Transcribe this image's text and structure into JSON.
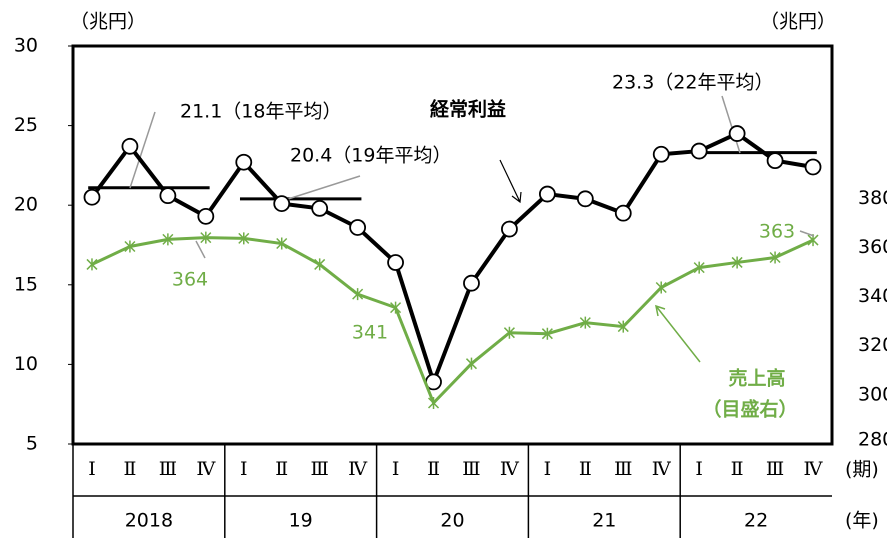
{
  "chart_data": {
    "type": "line",
    "unit_left": "（兆円）",
    "unit_right": "（兆円）",
    "categories": [
      "Ⅰ",
      "Ⅱ",
      "Ⅲ",
      "Ⅳ",
      "Ⅰ",
      "Ⅱ",
      "Ⅲ",
      "Ⅳ",
      "Ⅰ",
      "Ⅱ",
      "Ⅲ",
      "Ⅳ",
      "Ⅰ",
      "Ⅱ",
      "Ⅲ",
      "Ⅳ",
      "Ⅰ",
      "Ⅱ",
      "Ⅲ",
      "Ⅳ"
    ],
    "years": [
      "2018",
      "19",
      "20",
      "21",
      "22"
    ],
    "x_label_quarter": "(期)",
    "x_label_year": "(年)",
    "series": [
      {
        "name": "経常利益",
        "color": "#000000",
        "values": [
          20.5,
          23.7,
          20.6,
          19.3,
          22.7,
          20.1,
          19.8,
          18.6,
          16.4,
          8.9,
          15.1,
          18.5,
          20.7,
          20.4,
          19.5,
          23.2,
          23.4,
          24.5,
          22.8,
          22.4
        ]
      },
      {
        "name": "売上高",
        "note": "（目盛右）",
        "color": "#70ad47",
        "axis": "y2",
        "values": [
          353.1,
          360.4,
          363.3,
          364,
          363.7,
          361.6,
          353.1,
          341,
          335.5,
          296.7,
          312.7,
          325.3,
          324.9,
          329.4,
          327.8,
          343.7,
          351.8,
          353.9,
          355.9,
          363
        ],
        "value_labels": [
          null,
          null,
          null,
          "364",
          null,
          null,
          null,
          "341",
          null,
          null,
          null,
          null,
          null,
          null,
          null,
          null,
          null,
          null,
          null,
          "363"
        ]
      }
    ],
    "averages": [
      {
        "year": "2018",
        "value": 21.1,
        "label": "21.1（18年平均）"
      },
      {
        "year": "19",
        "value": 20.4,
        "label": "20.4（19年平均）"
      },
      {
        "year": "22",
        "value": 23.3,
        "label": "23.3（22年平均）"
      }
    ],
    "ylim": [
      5,
      30
    ],
    "yticks": [
      5,
      10,
      15,
      20,
      25,
      30
    ],
    "y2lim": [
      280,
      442
    ],
    "y2ticks": [
      280,
      300,
      320,
      340,
      360,
      380
    ]
  }
}
